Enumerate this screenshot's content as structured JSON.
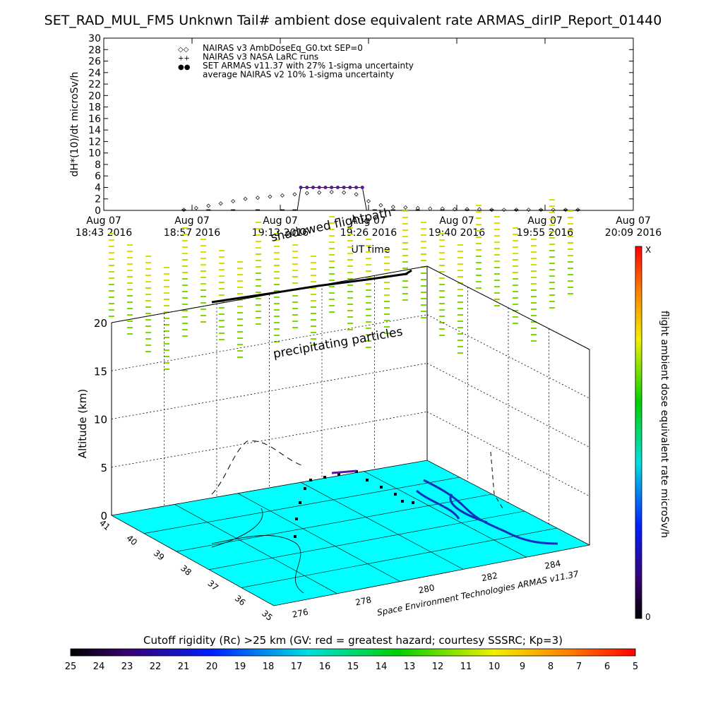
{
  "title": "SET_RAD_MUL_FM5 Unknwn Tail#  ambient dose equivalent rate ARMAS_dirIP_Report_01440",
  "chart_data": [
    {
      "type": "line",
      "title": "SET_RAD_MUL_FM5 Unknwn Tail#  ambient dose equivalent rate ARMAS_dirIP_Report_01440",
      "xlabel": "UT time",
      "ylabel": "dH*(10)/dt microSv/h",
      "ylim": [
        0,
        30
      ],
      "grid": false,
      "legend_position": "top-left",
      "x_ticks": [
        {
          "date": "Aug 07",
          "time": "18:43 2016"
        },
        {
          "date": "Aug 07",
          "time": "18:57 2016"
        },
        {
          "date": "Aug 07",
          "time": "19:12 2016"
        },
        {
          "date": "Aug 07",
          "time": "19:26 2016"
        },
        {
          "date": "Aug 07",
          "time": "19:40 2016"
        },
        {
          "date": "Aug 07",
          "time": "19:55 2016"
        },
        {
          "date": "Aug 07",
          "time": "20:09 2016"
        }
      ],
      "y_ticks": [
        0,
        2,
        4,
        6,
        8,
        10,
        12,
        14,
        16,
        18,
        20,
        22,
        24,
        26,
        28,
        30
      ],
      "legend": [
        {
          "symbol": "◇◇",
          "label": "NAIRAS v3 AmbDoseEq_G0.txt SEP=0"
        },
        {
          "symbol": "++",
          "label": "NAIRAS v3 NASA LaRC runs"
        },
        {
          "symbol": "●●",
          "label": "SET ARMAS v11.37 with 27% 1-sigma uncertainty",
          "color": "#1530d0"
        },
        {
          "symbol": "",
          "label": "average NAIRAS v2 10% 1-sigma uncertainty"
        }
      ],
      "series": [
        {
          "name": "NAIRAS v3 AmbDoseEq_G0.txt SEP=0",
          "times": [
            "18:56",
            "18:58",
            "19:00",
            "19:02",
            "19:04",
            "19:06",
            "19:08",
            "19:10",
            "19:12",
            "19:14",
            "19:16",
            "19:18",
            "19:20",
            "19:22",
            "19:24",
            "19:26",
            "19:28",
            "19:30",
            "19:32",
            "19:34",
            "19:36",
            "19:38",
            "19:40",
            "19:42",
            "19:44",
            "19:46",
            "19:48",
            "19:50",
            "19:52",
            "19:54",
            "19:56",
            "19:58",
            "20:00"
          ],
          "values": [
            0.1,
            0.4,
            0.8,
            1.2,
            1.6,
            2.0,
            2.2,
            2.4,
            2.6,
            2.8,
            3.0,
            3.1,
            3.2,
            3.1,
            2.8,
            1.6,
            0.9,
            0.6,
            0.5,
            0.4,
            0.3,
            0.3,
            0.2,
            0.2,
            0.2,
            0.1,
            0.1,
            0.1,
            0.1,
            0.1,
            0.1,
            0.1,
            0.1
          ]
        },
        {
          "name": "SET ARMAS v11.37 with 27% 1-sigma uncertainty",
          "times": [
            "19:15",
            "19:16",
            "19:17",
            "19:18",
            "19:19",
            "19:20",
            "19:21",
            "19:22",
            "19:23",
            "19:24",
            "19:25"
          ],
          "values": [
            4,
            4,
            4,
            4,
            4,
            4,
            4,
            4,
            4,
            4,
            4
          ],
          "color": "#5a1a9a"
        },
        {
          "name": "SET ARMAS v11.37 with 27% 1-sigma uncertainty (low)",
          "times": [
            "18:56",
            "19:00",
            "19:04",
            "19:08",
            "19:12",
            "19:14",
            "19:27",
            "19:30",
            "19:34",
            "19:38",
            "19:42",
            "19:46",
            "19:50",
            "19:54",
            "19:58",
            "20:00"
          ],
          "values": [
            0.05,
            0.05,
            0.05,
            0.05,
            0.05,
            0.05,
            0.05,
            0.05,
            0.05,
            0.05,
            0.05,
            0.05,
            0.05,
            0.05,
            0.05,
            0.05
          ]
        }
      ]
    },
    {
      "type": "scatter",
      "subtype": "3d-flight-path",
      "zlabel": "Altitude (km)",
      "z_ticks": [
        0,
        5,
        10,
        15,
        20
      ],
      "lat_ticks": [
        35,
        36,
        37,
        38,
        39,
        40,
        41
      ],
      "lon_ticks": [
        276,
        278,
        280,
        282,
        284
      ],
      "annotations": [
        "shadowed flightpath",
        "precipitating particles",
        "Space Environment Technologies ARMAS v11.37"
      ],
      "colorbar_right": {
        "label": "flight ambient dose equivalent rate microSv/h",
        "min": "0",
        "max": "X"
      },
      "colorbar_bottom": {
        "label": "Cutoff rigidity (Rc) >25 km (GV: red = greatest hazard; courtesy SSSRC; Kp=3)",
        "ticks": [
          25,
          24,
          23,
          22,
          21,
          20,
          19,
          18,
          17,
          16,
          15,
          14,
          13,
          12,
          11,
          10,
          9,
          8,
          7,
          6,
          5
        ]
      },
      "flight_path": [
        {
          "lon": 277.4,
          "lat": 37.5,
          "alt": 0.5
        },
        {
          "lon": 277.8,
          "lat": 37.9,
          "alt": 2.0
        },
        {
          "lon": 278.2,
          "lat": 38.3,
          "alt": 4.0
        },
        {
          "lon": 278.6,
          "lat": 38.7,
          "alt": 6.0
        },
        {
          "lon": 279.0,
          "lat": 39.1,
          "alt": 7.5
        },
        {
          "lon": 279.5,
          "lat": 39.5,
          "alt": 8.0
        },
        {
          "lon": 280.0,
          "lat": 39.9,
          "alt": 8.2
        },
        {
          "lon": 280.5,
          "lat": 40.2,
          "alt": 8.2
        }
      ]
    }
  ]
}
